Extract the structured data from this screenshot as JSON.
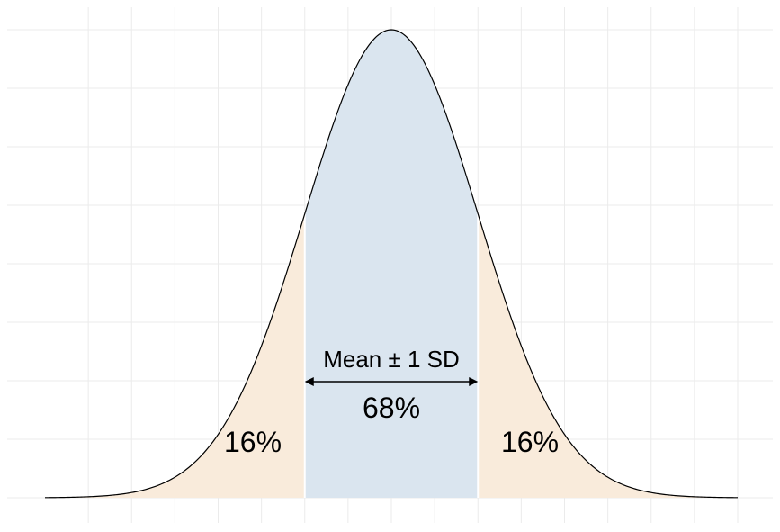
{
  "chart_data": {
    "type": "area",
    "title": "",
    "xlabel": "",
    "ylabel": "",
    "distribution": "normal",
    "mean": 0,
    "sd": 1,
    "xlim": [
      -4,
      4
    ],
    "grid": true,
    "regions": [
      {
        "name": "left-tail",
        "from": -4,
        "to": -1,
        "color": "#f9ebdb"
      },
      {
        "name": "center",
        "from": -1,
        "to": 1,
        "color": "#dae5ef"
      },
      {
        "name": "right-tail",
        "from": 1,
        "to": 4,
        "color": "#f9ebdb"
      }
    ],
    "annotations": {
      "range_label": "Mean ± 1 SD",
      "center_pct": "68%",
      "left_pct": "16%",
      "right_pct": "16%"
    },
    "curve_color": "#000000",
    "grid_color": "#ebebeb"
  }
}
